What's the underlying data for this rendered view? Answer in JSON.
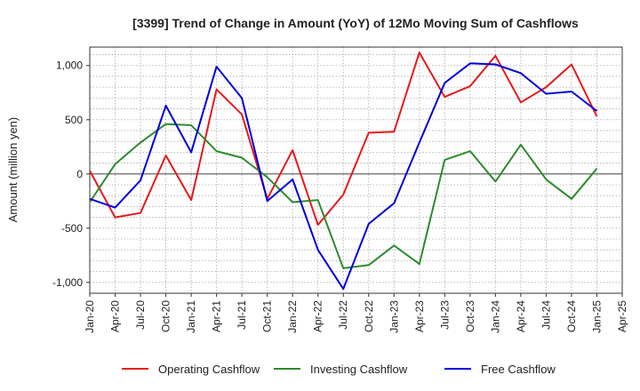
{
  "chart_data": {
    "type": "line",
    "title": "[3399]  Trend of Change in Amount (YoY) of 12Mo Moving Sum of Cashflows",
    "xlabel": "",
    "ylabel": "Amount (million yen)",
    "ylim": [
      -1100,
      1170
    ],
    "yticks": [
      -1000,
      -500,
      0,
      500,
      1000
    ],
    "ytick_labels": [
      "-1,000",
      "-500",
      "0",
      "500",
      "1,000"
    ],
    "categories": [
      "Jan-20",
      "Apr-20",
      "Jul-20",
      "Oct-20",
      "Jan-21",
      "Apr-21",
      "Jul-21",
      "Oct-21",
      "Jan-22",
      "Apr-22",
      "Jul-22",
      "Oct-22",
      "Jan-23",
      "Apr-23",
      "Jul-23",
      "Oct-23",
      "Jan-24",
      "Apr-24",
      "Jul-24",
      "Oct-24",
      "Jan-25",
      "Apr-25"
    ],
    "grid": true,
    "legend_position": "bottom",
    "series": [
      {
        "name": "Operating Cashflow",
        "color": "#e41a1c",
        "values": [
          30,
          -400,
          -360,
          170,
          -240,
          780,
          550,
          -230,
          220,
          -470,
          -190,
          380,
          390,
          1120,
          710,
          810,
          1090,
          660,
          800,
          1010,
          530,
          null
        ]
      },
      {
        "name": "Investing Cashflow",
        "color": "#2e8b2e",
        "values": [
          -260,
          90,
          290,
          460,
          450,
          210,
          150,
          -30,
          -260,
          -240,
          -870,
          -840,
          -660,
          -830,
          130,
          210,
          -70,
          270,
          -50,
          -230,
          50,
          null
        ]
      },
      {
        "name": "Free Cashflow",
        "color": "#0000dd",
        "values": [
          -230,
          -310,
          -60,
          630,
          200,
          990,
          700,
          -250,
          -50,
          -700,
          -1060,
          -460,
          -270,
          290,
          840,
          1020,
          1010,
          930,
          740,
          760,
          580,
          null
        ]
      }
    ]
  }
}
